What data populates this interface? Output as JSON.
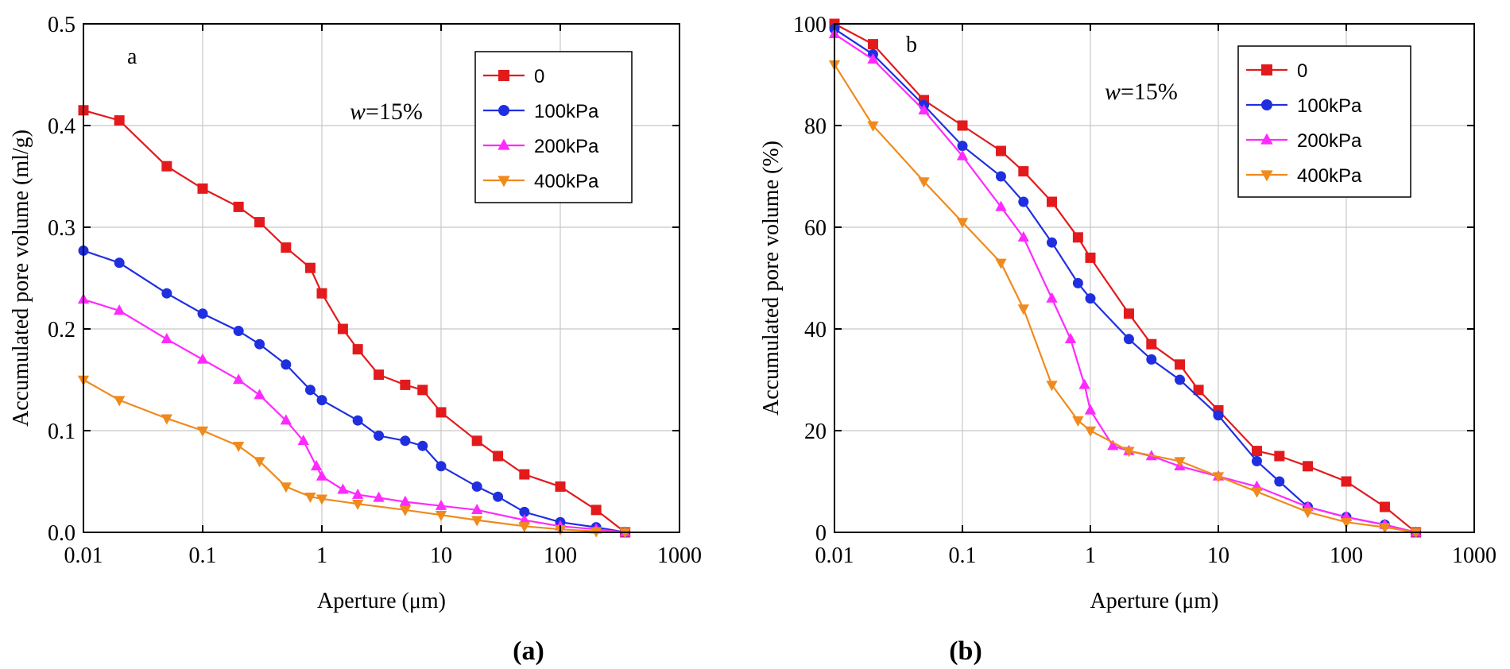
{
  "chart_data": [
    {
      "type": "line",
      "panel_label": "a",
      "caption": "(a)",
      "annotation": {
        "var": "w",
        "rest": "=15%"
      },
      "xlabel": "Aperture  (μm)",
      "ylabel": "Accumulated pore volume  (ml/g)",
      "xscale": "log",
      "xlim": [
        0.01,
        1000
      ],
      "ylim": [
        0,
        0.5
      ],
      "xticks": [
        "0.01",
        "0.1",
        "1",
        "10",
        "100",
        "1000"
      ],
      "yticks": [
        "0.0",
        "0.1",
        "0.2",
        "0.3",
        "0.4",
        "0.5"
      ],
      "grid": true,
      "legend_position": "top-right",
      "series": [
        {
          "name": "0",
          "color": "#e31a1c",
          "marker": "square",
          "x": [
            0.01,
            0.02,
            0.05,
            0.1,
            0.2,
            0.3,
            0.5,
            0.8,
            1,
            1.5,
            2,
            3,
            5,
            7,
            10,
            20,
            30,
            50,
            100,
            200,
            350
          ],
          "y": [
            0.415,
            0.405,
            0.36,
            0.338,
            0.32,
            0.305,
            0.28,
            0.26,
            0.235,
            0.2,
            0.18,
            0.155,
            0.145,
            0.14,
            0.118,
            0.09,
            0.075,
            0.057,
            0.045,
            0.022,
            0.0
          ]
        },
        {
          "name": "100kPa",
          "color": "#1f2fe0",
          "marker": "circle",
          "x": [
            0.01,
            0.02,
            0.05,
            0.1,
            0.2,
            0.3,
            0.5,
            0.8,
            1,
            2,
            3,
            5,
            7,
            10,
            20,
            30,
            50,
            100,
            200,
            350
          ],
          "y": [
            0.277,
            0.265,
            0.235,
            0.215,
            0.198,
            0.185,
            0.165,
            0.14,
            0.13,
            0.11,
            0.095,
            0.09,
            0.085,
            0.065,
            0.045,
            0.035,
            0.02,
            0.01,
            0.005,
            0.0
          ]
        },
        {
          "name": "200kPa",
          "color": "#ff29ff",
          "marker": "triangle-up",
          "x": [
            0.01,
            0.02,
            0.05,
            0.1,
            0.2,
            0.3,
            0.5,
            0.7,
            0.9,
            1,
            1.5,
            2,
            3,
            5,
            10,
            20,
            50,
            100,
            200,
            350
          ],
          "y": [
            0.229,
            0.218,
            0.19,
            0.17,
            0.15,
            0.135,
            0.11,
            0.09,
            0.065,
            0.055,
            0.042,
            0.037,
            0.034,
            0.03,
            0.026,
            0.022,
            0.012,
            0.006,
            0.003,
            0.0
          ]
        },
        {
          "name": "400kPa",
          "color": "#f08a1c",
          "marker": "triangle-down",
          "x": [
            0.01,
            0.02,
            0.05,
            0.1,
            0.2,
            0.3,
            0.5,
            0.8,
            1,
            2,
            5,
            10,
            20,
            50,
            100,
            200,
            350
          ],
          "y": [
            0.15,
            0.13,
            0.112,
            0.1,
            0.085,
            0.07,
            0.045,
            0.035,
            0.033,
            0.028,
            0.022,
            0.017,
            0.012,
            0.006,
            0.003,
            0.001,
            0.0
          ]
        }
      ]
    },
    {
      "type": "line",
      "panel_label": "b",
      "caption": "(b)",
      "annotation": {
        "var": "w",
        "rest": "=15%"
      },
      "xlabel": "Aperture  (μm)",
      "ylabel": "Accumulated pore volume  (%)",
      "xscale": "log",
      "xlim": [
        0.01,
        1000
      ],
      "ylim": [
        0,
        100
      ],
      "xticks": [
        "0.01",
        "0.1",
        "1",
        "10",
        "100",
        "1000"
      ],
      "yticks": [
        "0",
        "20",
        "40",
        "60",
        "80",
        "100"
      ],
      "grid": true,
      "legend_position": "top-right",
      "series": [
        {
          "name": "0",
          "color": "#e31a1c",
          "marker": "square",
          "x": [
            0.01,
            0.02,
            0.05,
            0.1,
            0.2,
            0.3,
            0.5,
            0.8,
            1,
            2,
            3,
            5,
            7,
            10,
            20,
            30,
            50,
            100,
            200,
            350
          ],
          "y": [
            100,
            96,
            85,
            80,
            75,
            71,
            65,
            58,
            54,
            43,
            37,
            33,
            28,
            24,
            16,
            15,
            13,
            10,
            5,
            0
          ]
        },
        {
          "name": "100kPa",
          "color": "#1f2fe0",
          "marker": "circle",
          "x": [
            0.01,
            0.02,
            0.05,
            0.1,
            0.2,
            0.3,
            0.5,
            0.8,
            1,
            2,
            3,
            5,
            10,
            20,
            30,
            50,
            100,
            200,
            350
          ],
          "y": [
            99,
            94,
            84,
            76,
            70,
            65,
            57,
            49,
            46,
            38,
            34,
            30,
            23,
            14,
            10,
            5,
            3,
            1.5,
            0
          ]
        },
        {
          "name": "200kPa",
          "color": "#ff29ff",
          "marker": "triangle-up",
          "x": [
            0.01,
            0.02,
            0.05,
            0.1,
            0.2,
            0.3,
            0.5,
            0.7,
            0.9,
            1,
            1.5,
            2,
            3,
            5,
            10,
            20,
            50,
            100,
            200,
            350
          ],
          "y": [
            98,
            93,
            83,
            74,
            64,
            58,
            46,
            38,
            29,
            24,
            17,
            16,
            15,
            13,
            11,
            9,
            5,
            3,
            1.5,
            0
          ]
        },
        {
          "name": "400kPa",
          "color": "#f08a1c",
          "marker": "triangle-down",
          "x": [
            0.01,
            0.02,
            0.05,
            0.1,
            0.2,
            0.3,
            0.5,
            0.8,
            1,
            2,
            5,
            10,
            20,
            50,
            100,
            200,
            350
          ],
          "y": [
            92,
            80,
            69,
            61,
            53,
            44,
            29,
            22,
            20,
            16,
            14,
            11,
            8,
            4,
            2,
            1,
            0
          ]
        }
      ]
    }
  ]
}
